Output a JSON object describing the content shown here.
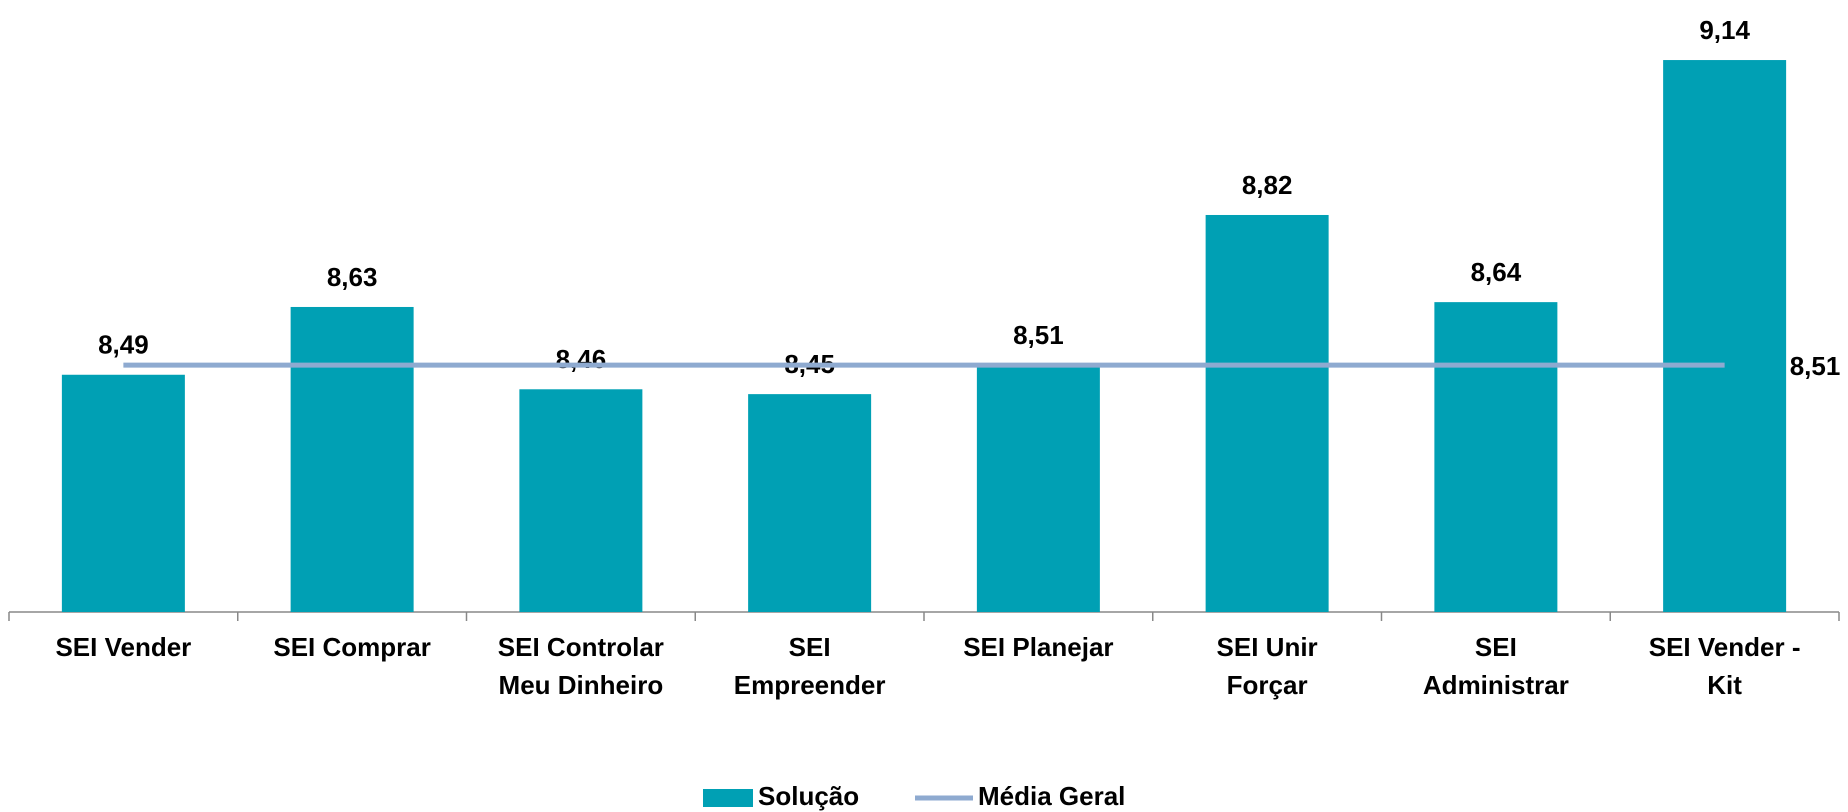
{
  "chart_data": {
    "type": "bar",
    "categories": [
      "SEI Vender",
      "SEI Comprar",
      "SEI Controlar\nMeu Dinheiro",
      "SEI\nEmpreender",
      "SEI Planejar",
      "SEI Unir\nForçar",
      "SEI\nAdministrar",
      "SEI Vender -\nKit"
    ],
    "series": [
      {
        "name": "Solução",
        "type": "bar",
        "color": "#00a0b4",
        "values": [
          8.49,
          8.63,
          8.46,
          8.45,
          8.51,
          8.82,
          8.64,
          9.14
        ],
        "value_labels": [
          "8,49",
          "8,63",
          "8,46",
          "8,45",
          "8,51",
          "8,82",
          "8,64",
          "9,14"
        ]
      },
      {
        "name": "Média Geral",
        "type": "line",
        "color": "#8eaad0",
        "values": [
          8.51,
          8.51,
          8.51,
          8.51,
          8.51,
          8.51,
          8.51,
          8.51
        ],
        "value_labels": [
          null,
          null,
          null,
          null,
          null,
          null,
          null,
          "8,51"
        ]
      }
    ],
    "ylim": [
      8,
      9.2
    ],
    "grid": false,
    "legend": "bottom"
  }
}
